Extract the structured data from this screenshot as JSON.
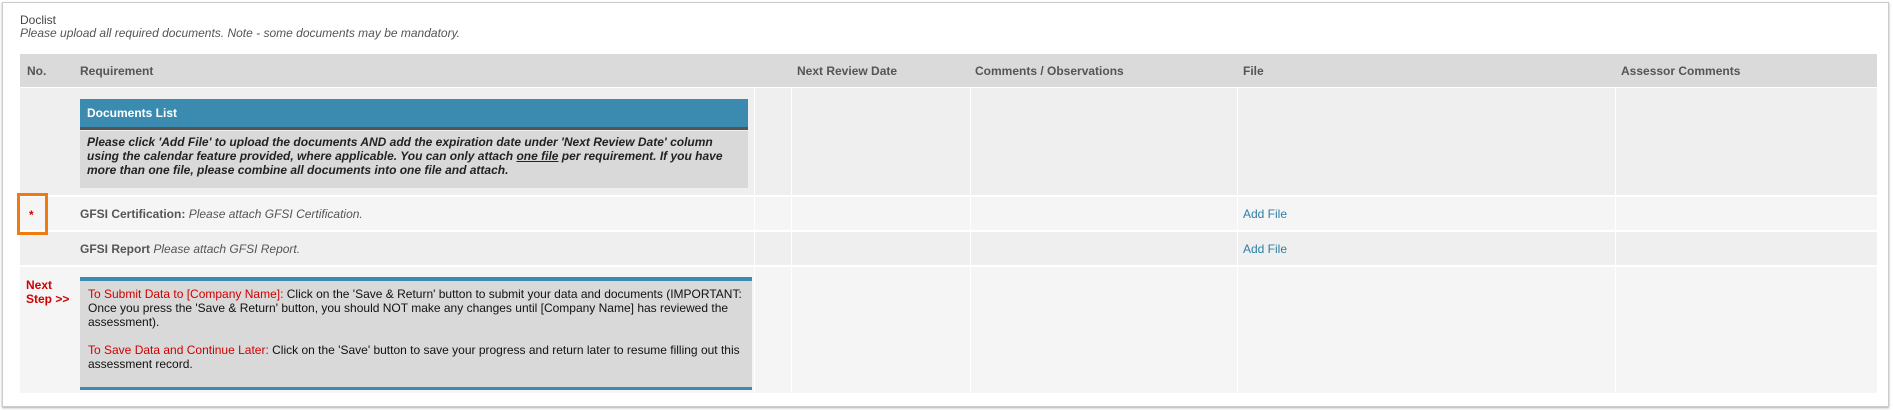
{
  "header": {
    "title": "Doclist",
    "subtitle": "Please upload all required documents. Note - some documents may be mandatory."
  },
  "table": {
    "columns": [
      "No.",
      "Requirement",
      "Next Review Date",
      "Comments / Observations",
      "File",
      "Assessor Comments"
    ],
    "documents_list": {
      "title": "Documents List",
      "instructions": [
        "Please click 'Add File' to upload the documents AND add the expiration date under 'Next Review Date' column using the calendar feature provided, where applicable. You can only attach ",
        "one file",
        " per requirement. If you have more than one file, please combine all documents into one file and attach."
      ]
    },
    "rows": [
      {
        "marker": "*",
        "name": "GFSI Certification:",
        "hint": "Please attach GFSI Certification.",
        "file": "Add File"
      },
      {
        "name": "GFSI Report",
        "hint": "Please attach GFSI Report.",
        "file": "Add File"
      }
    ],
    "next_step": {
      "label": "Next Step >>",
      "submit_label": "To Submit Data to [Company Name]:",
      "submit_text": "Click on the 'Save & Return' button to submit your data and documents (IMPORTANT: Once you press the 'Save & Return' button, you should NOT make any changes until [Company Name] has reviewed the assessment).",
      "save_label": "To Save Data and Continue Later:",
      "save_text": "Click on the 'Save' button to save your progress and return later to resume filling out this assessment record."
    }
  }
}
